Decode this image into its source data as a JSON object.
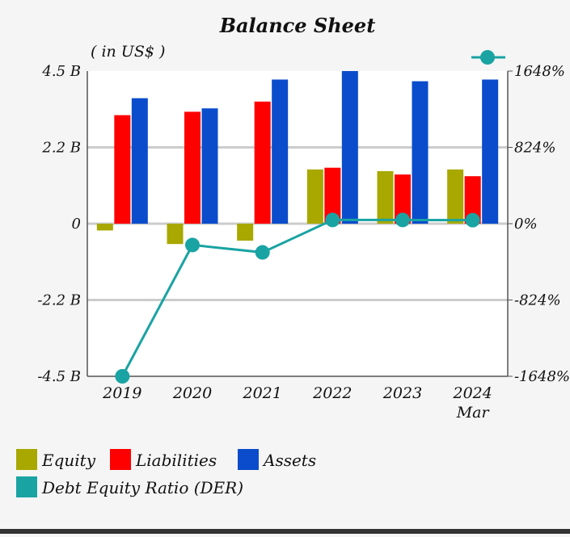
{
  "chart_data": {
    "type": "bar",
    "title": "Balance Sheet",
    "unit_label": "( in US$ )",
    "categories": [
      "2019",
      "2020",
      "2021",
      "2022",
      "2023",
      "2024\nMar"
    ],
    "y_left": {
      "ticks": [
        "4.5 B",
        "2.2 B",
        "0",
        "-2.2 B",
        "-4.5 B"
      ],
      "range": [
        -4.5,
        4.5
      ]
    },
    "y_right": {
      "ticks": [
        "1648%",
        "824%",
        "0%",
        "-824%",
        "-1648%"
      ],
      "range": [
        -1648,
        1648
      ]
    },
    "grid": true,
    "series": [
      {
        "name": "Equity",
        "color": "#a8a800",
        "values": [
          -0.2,
          -0.6,
          -0.5,
          1.6,
          1.55,
          1.6
        ]
      },
      {
        "name": "Liabilities",
        "color": "#ff0000",
        "values": [
          3.2,
          3.3,
          3.6,
          1.65,
          1.45,
          1.4
        ]
      },
      {
        "name": "Assets",
        "color": "#0a4ccc",
        "values": [
          3.7,
          3.4,
          4.25,
          4.5,
          4.2,
          4.25
        ]
      }
    ],
    "line_series": {
      "name": "Debt Equity Ratio (DER)",
      "color": "#1aa3a3",
      "axis": "right",
      "values": [
        -1648,
        -230,
        -310,
        40,
        40,
        38
      ]
    },
    "legend_position": "bottom"
  }
}
